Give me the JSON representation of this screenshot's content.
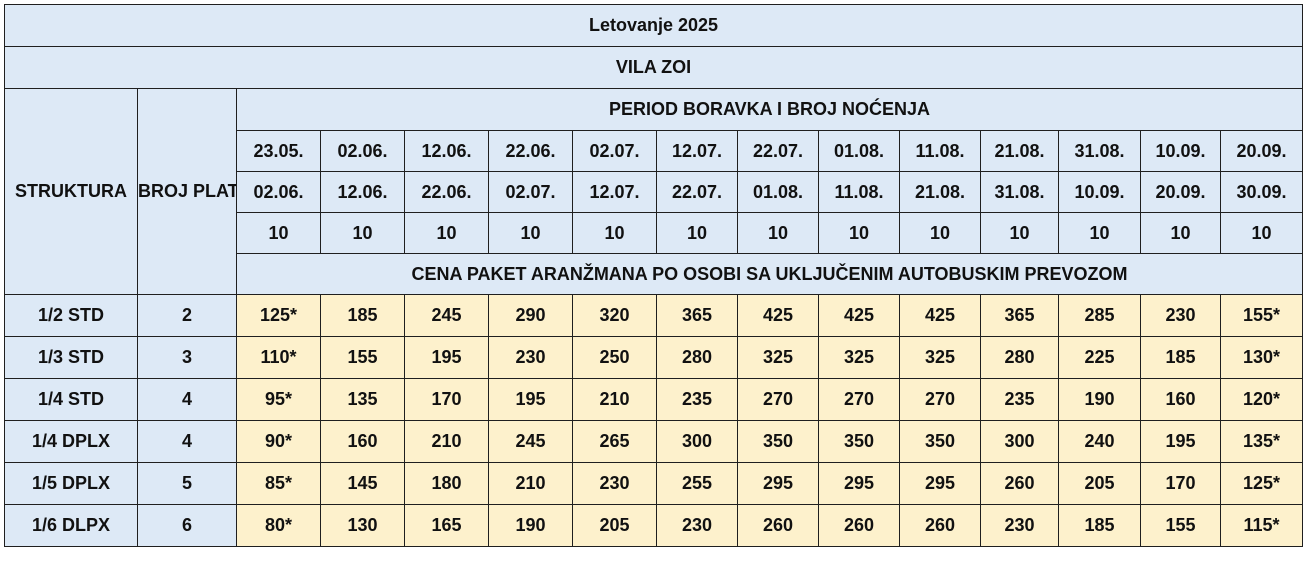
{
  "title": "Letovanje 2025",
  "hotel": "VILA ZOI",
  "headers": {
    "struktura": "STRUKTURA",
    "broj_plativih_osoba": "BROJ PLATIVIH OSOBA",
    "period": "PERIOD BORAVKA I BROJ NOĆENJA",
    "cena": "CENA PAKET ARANŽMANA PO OSOBI SA UKLJUČENIM AUTOBUSKIM PREVOZOM"
  },
  "periods": [
    {
      "from": "23.05.",
      "to": "02.06.",
      "nights": "10"
    },
    {
      "from": "02.06.",
      "to": "12.06.",
      "nights": "10"
    },
    {
      "from": "12.06.",
      "to": "22.06.",
      "nights": "10"
    },
    {
      "from": "22.06.",
      "to": "02.07.",
      "nights": "10"
    },
    {
      "from": "02.07.",
      "to": "12.07.",
      "nights": "10"
    },
    {
      "from": "12.07.",
      "to": "22.07.",
      "nights": "10"
    },
    {
      "from": "22.07.",
      "to": "01.08.",
      "nights": "10"
    },
    {
      "from": "01.08.",
      "to": "11.08.",
      "nights": "10"
    },
    {
      "from": "11.08.",
      "to": "21.08.",
      "nights": "10"
    },
    {
      "from": "21.08.",
      "to": "31.08.",
      "nights": "10"
    },
    {
      "from": "31.08.",
      "to": "10.09.",
      "nights": "10"
    },
    {
      "from": "10.09.",
      "to": "20.09.",
      "nights": "10"
    },
    {
      "from": "20.09.",
      "to": "30.09.",
      "nights": "10"
    }
  ],
  "rows": [
    {
      "struktura": "1/2 STD",
      "osobe": "2",
      "prices": [
        "125*",
        "185",
        "245",
        "290",
        "320",
        "365",
        "425",
        "425",
        "425",
        "365",
        "285",
        "230",
        "155*"
      ]
    },
    {
      "struktura": "1/3 STD",
      "osobe": "3",
      "prices": [
        "110*",
        "155",
        "195",
        "230",
        "250",
        "280",
        "325",
        "325",
        "325",
        "280",
        "225",
        "185",
        "130*"
      ]
    },
    {
      "struktura": "1/4 STD",
      "osobe": "4",
      "prices": [
        "95*",
        "135",
        "170",
        "195",
        "210",
        "235",
        "270",
        "270",
        "270",
        "235",
        "190",
        "160",
        "120*"
      ]
    },
    {
      "struktura": "1/4 DPLX",
      "osobe": "4",
      "prices": [
        "90*",
        "160",
        "210",
        "245",
        "265",
        "300",
        "350",
        "350",
        "350",
        "300",
        "240",
        "195",
        "135*"
      ]
    },
    {
      "struktura": "1/5 DPLX",
      "osobe": "5",
      "prices": [
        "85*",
        "145",
        "180",
        "210",
        "230",
        "255",
        "295",
        "295",
        "295",
        "260",
        "205",
        "170",
        "125*"
      ]
    },
    {
      "struktura": "1/6 DLPX",
      "osobe": "6",
      "prices": [
        "80*",
        "130",
        "165",
        "190",
        "205",
        "230",
        "260",
        "260",
        "260",
        "230",
        "185",
        "155",
        "115*"
      ]
    }
  ],
  "colors": {
    "header_bg": "#dde9f6",
    "price_bg": "#fdf1cc",
    "border": "#1f1f1f"
  }
}
